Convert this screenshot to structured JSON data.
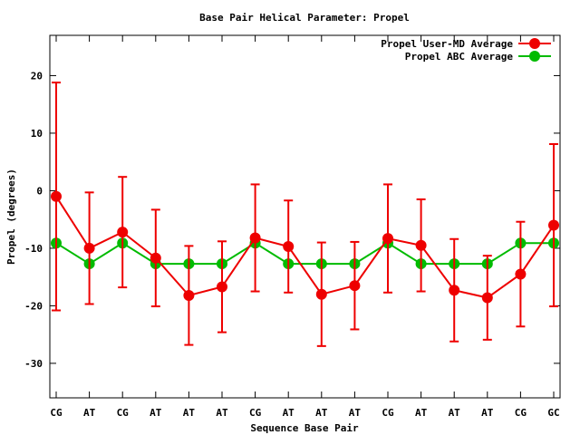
{
  "chart_data": {
    "type": "line",
    "title": "Base Pair Helical Parameter: Propel",
    "xlabel": "Sequence Base Pair",
    "ylabel": "Propel (degrees)",
    "categories": [
      "CG",
      "AT",
      "CG",
      "AT",
      "AT",
      "AT",
      "CG",
      "AT",
      "AT",
      "AT",
      "CG",
      "AT",
      "AT",
      "AT",
      "CG",
      "GC"
    ],
    "ylim": [
      -36,
      27
    ],
    "yticks": [
      -30,
      -20,
      -10,
      0,
      10,
      20
    ],
    "grid": false,
    "legend_position": "top-right",
    "series": [
      {
        "name": "Propel User-MD Average",
        "color": "#ee0000",
        "values": [
          -1,
          -10,
          -7.2,
          -11.7,
          -18.2,
          -16.7,
          -8.2,
          -9.7,
          -18,
          -16.5,
          -8.3,
          -9.5,
          -17.3,
          -18.6,
          -14.5,
          -6
        ],
        "errors": [
          19.8,
          9.7,
          9.6,
          8.4,
          8.6,
          7.9,
          9.3,
          8.0,
          9.0,
          7.6,
          9.4,
          8.0,
          8.9,
          7.3,
          9.1,
          14.1
        ]
      },
      {
        "name": "Propel ABC Average",
        "color": "#00bb00",
        "values": [
          -9.1,
          -12.7,
          -9.1,
          -12.7,
          -12.7,
          -12.7,
          -9.1,
          -12.7,
          -12.7,
          -12.7,
          -9.1,
          -12.7,
          -12.7,
          -12.7,
          -9.1,
          -9.1
        ]
      }
    ]
  }
}
